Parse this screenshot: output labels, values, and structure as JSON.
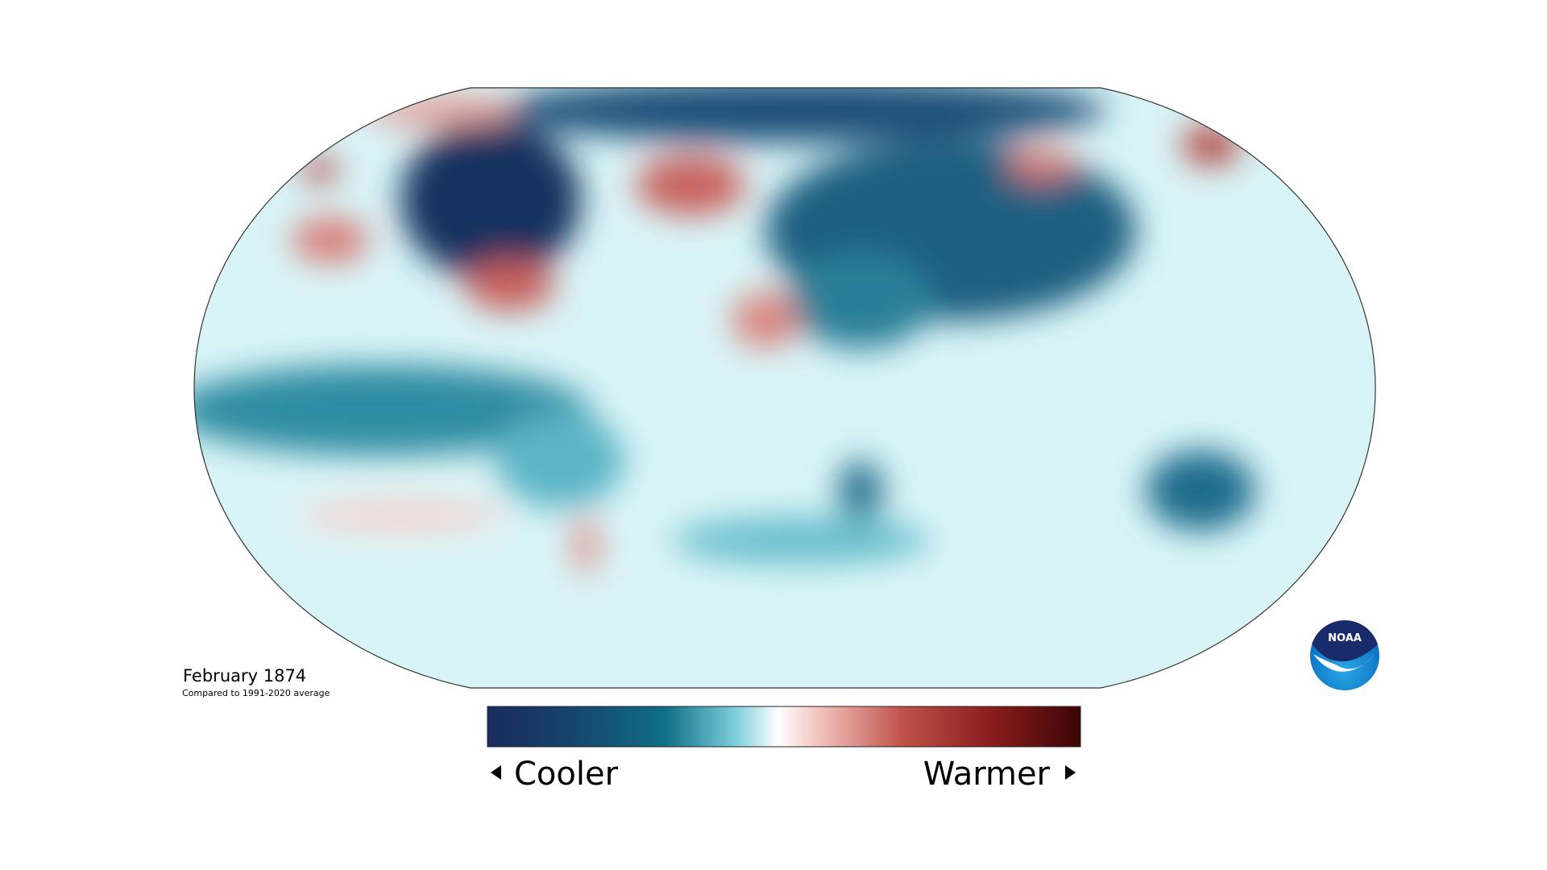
{
  "map": {
    "title": "February 1874",
    "subtitle": "Compared to 1991-2020 average"
  },
  "legend": {
    "low_label": "Cooler",
    "high_label": "Warmer"
  },
  "logo": {
    "text": "NOAA"
  }
}
